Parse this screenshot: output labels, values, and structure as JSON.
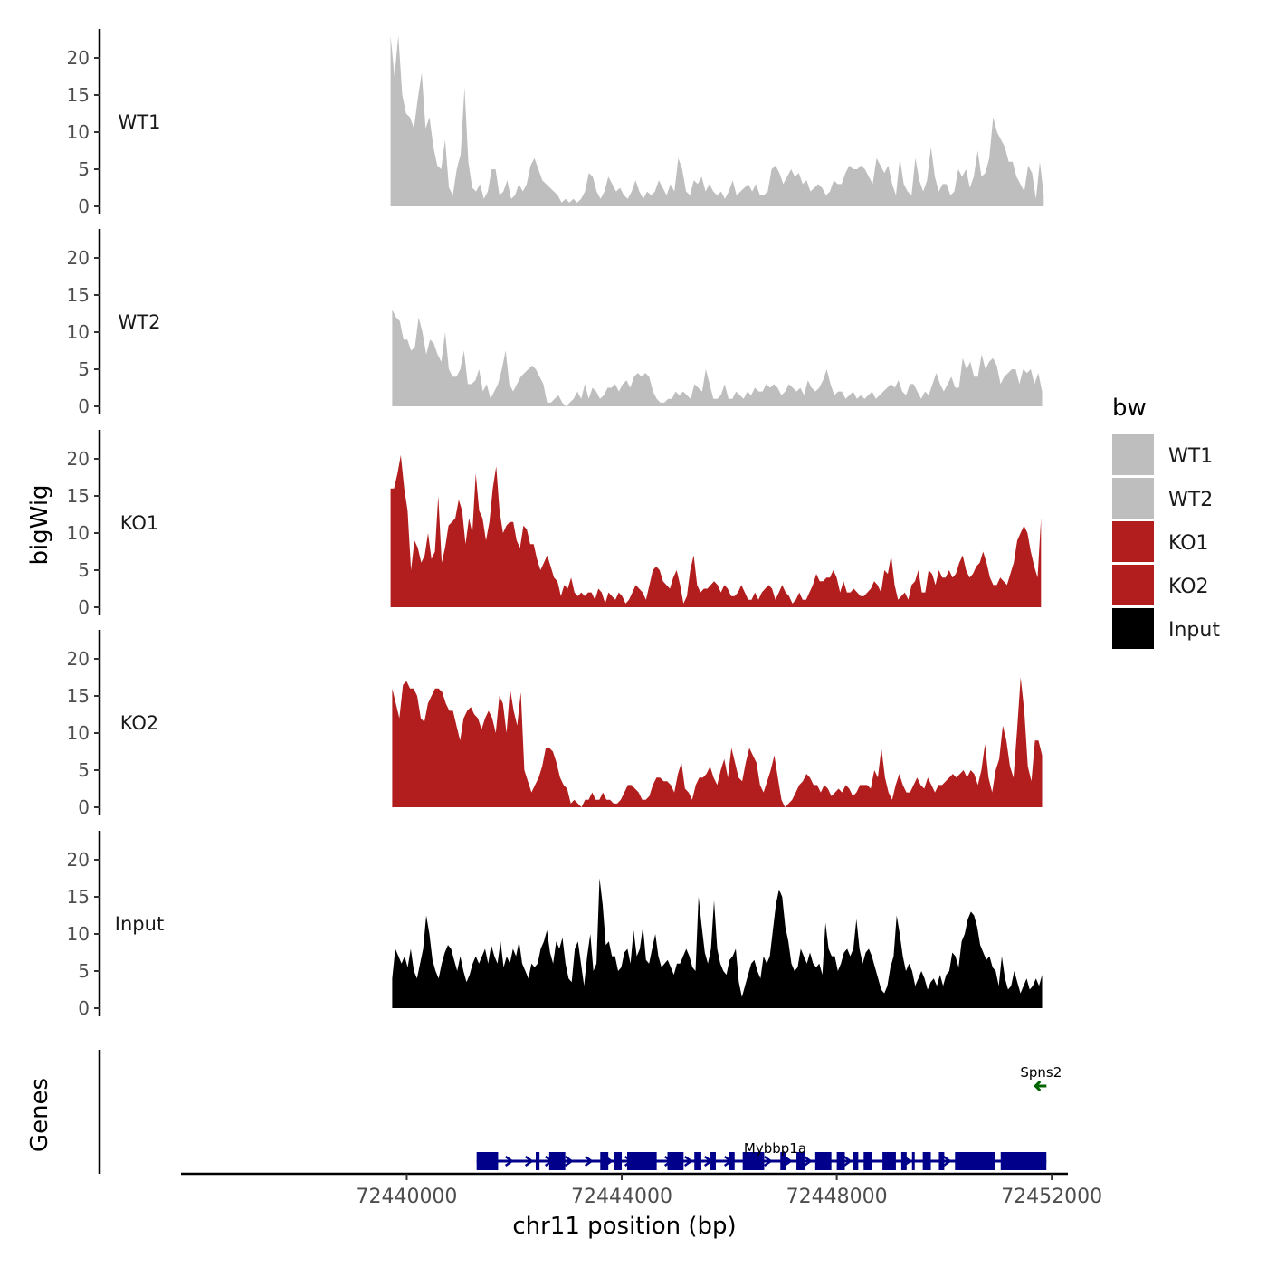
{
  "chart_data": {
    "type": "area",
    "ylabel": "bigWig",
    "xlabel": "chr11 position (bp)",
    "xlim": [
      72435800,
      72452300
    ],
    "x_ticks": [
      72440000,
      72444000,
      72448000,
      72452000
    ],
    "x_tick_labels": [
      "72440000",
      "72444000",
      "72448000",
      "72452000"
    ],
    "ylim": [
      0,
      24
    ],
    "y_ticks": [
      0,
      5,
      10,
      15,
      20
    ],
    "y_tick_labels": [
      "0",
      "5",
      "10",
      "15",
      "20"
    ],
    "grid": false,
    "legend": {
      "title": "bw",
      "position": "right",
      "entries": [
        {
          "label": "WT1",
          "color": "#bebebe"
        },
        {
          "label": "WT2",
          "color": "#bebebe"
        },
        {
          "label": "KO1",
          "color": "#b21e1e"
        },
        {
          "label": "KO2",
          "color": "#b21e1e"
        },
        {
          "label": "Input",
          "color": "#000000"
        }
      ]
    },
    "series": [
      {
        "name": "WT1",
        "color": "#bebebe",
        "x_start": 72439700,
        "x_end": 72451850,
        "values": [
          23,
          17.5,
          23,
          15,
          12.5,
          12,
          10.5,
          14.5,
          18,
          10.5,
          12,
          8,
          5.5,
          5,
          9,
          2.5,
          1.5,
          5,
          7,
          16,
          6,
          2.5,
          2,
          3,
          1,
          2,
          5,
          5,
          1.5,
          2,
          3.5,
          1,
          1.5,
          3,
          2,
          3,
          5.5,
          6.5,
          5,
          3.5,
          3,
          2.5,
          2,
          1.5,
          0.5,
          1,
          0.5,
          1,
          0.5,
          1,
          2,
          4.5,
          4,
          2,
          1,
          2,
          4,
          3,
          2,
          2.5,
          1.5,
          1,
          2,
          3.5,
          2,
          1,
          2,
          1.5,
          2,
          3.5,
          2.5,
          1.5,
          3,
          2,
          6.5,
          5,
          2,
          1.5,
          3.5,
          3,
          4,
          2,
          3,
          2,
          1.5,
          2,
          1,
          2,
          3.5,
          1.5,
          2,
          2.5,
          3,
          2,
          3,
          1.5,
          1.5,
          2,
          5,
          5.5,
          4.5,
          3,
          4,
          5,
          4,
          4.5,
          3,
          3.5,
          2,
          2.5,
          3,
          2.5,
          1.5,
          2,
          3.5,
          3,
          3,
          4.5,
          5.5,
          5,
          5,
          5.5,
          5,
          4,
          3,
          6.5,
          5.5,
          4.5,
          5.5,
          3,
          1.5,
          6.5,
          3,
          2,
          1.5,
          6.5,
          3.5,
          2,
          3.5,
          8,
          4,
          2,
          3,
          3,
          1.5,
          2,
          5,
          4,
          5,
          2.5,
          4,
          7.5,
          4,
          4.5,
          6.5,
          12,
          10,
          9,
          8,
          6,
          6,
          4,
          3,
          2,
          5.5,
          4.5,
          1,
          6,
          1.5
        ]
      },
      {
        "name": "WT2",
        "color": "#bebebe",
        "x_start": 72439730,
        "x_end": 72451820,
        "values": [
          13,
          12,
          11.5,
          9,
          9,
          7.5,
          8,
          12,
          10,
          7,
          9,
          8.5,
          7,
          6,
          10,
          5,
          4,
          4,
          5,
          7.5,
          3,
          3,
          3.5,
          5,
          2,
          3,
          1,
          2,
          3,
          5,
          7.5,
          3,
          2,
          3,
          4,
          4.5,
          5,
          5.5,
          5,
          4,
          3,
          0.5,
          0.5,
          1,
          1.5,
          0.5,
          0,
          0.5,
          1,
          2,
          1,
          3,
          1,
          2.5,
          2,
          1,
          1.5,
          2.5,
          2.5,
          3,
          2,
          3,
          3.5,
          2.5,
          4,
          4.5,
          4,
          4.5,
          4,
          2,
          1,
          0.5,
          0.5,
          1,
          1,
          2,
          1.5,
          2,
          1.5,
          1,
          3,
          2.5,
          2,
          5,
          3,
          1,
          1,
          1.5,
          3,
          1,
          1,
          2,
          1.5,
          1,
          2,
          1.5,
          2.5,
          2,
          2,
          3,
          2.5,
          3,
          2.5,
          1.5,
          2,
          3,
          2.5,
          2,
          2.5,
          1.5,
          3.5,
          2.5,
          2,
          2.5,
          3.5,
          5,
          3,
          1.5,
          2,
          2,
          1,
          1.5,
          2,
          1,
          1.5,
          1,
          1.5,
          2,
          1,
          1.5,
          2,
          2.5,
          3,
          2.5,
          3.5,
          2,
          1.5,
          3,
          3,
          2,
          1,
          2,
          1.5,
          3,
          4.5,
          3,
          2,
          3,
          4,
          2.5,
          2.5,
          6.5,
          5,
          6,
          4,
          4,
          7,
          5,
          6,
          6.5,
          5.5,
          3,
          4,
          4.5,
          5,
          5,
          3,
          5,
          4.5,
          5,
          3,
          4.5,
          2
        ]
      },
      {
        "name": "KO1",
        "color": "#b21e1e",
        "x_start": 72439700,
        "x_end": 72451800,
        "values": [
          16,
          16,
          18,
          20.5,
          16,
          13,
          5,
          9,
          8,
          6,
          7,
          10,
          6.5,
          7.5,
          15,
          6,
          8,
          11,
          11.5,
          12,
          14.5,
          13,
          8.5,
          12,
          10,
          18,
          13,
          12,
          9,
          11.5,
          16,
          19,
          13,
          10,
          11,
          11.5,
          11.5,
          9,
          8,
          11,
          10.5,
          8.5,
          8.5,
          6.5,
          5,
          6,
          7,
          5.5,
          4,
          3.5,
          1.5,
          3,
          2.5,
          4,
          2,
          1.5,
          2,
          1.5,
          2,
          2,
          1,
          2.5,
          2,
          0.5,
          2,
          1.5,
          1,
          2,
          1.5,
          0.5,
          1,
          2,
          3,
          2.5,
          2,
          1,
          3,
          5,
          5.5,
          5,
          3.5,
          3,
          2.5,
          4,
          5,
          3,
          0.5,
          1.5,
          5,
          7,
          3,
          2,
          2.5,
          2.5,
          3,
          3.5,
          3,
          2,
          3,
          2.5,
          1.5,
          1.5,
          2,
          3,
          2,
          1,
          1,
          2,
          1,
          2,
          2.5,
          3,
          2.5,
          1,
          2,
          3,
          2,
          1.5,
          0.5,
          1,
          2,
          1,
          1,
          2,
          3,
          4.5,
          3.5,
          3.5,
          4,
          4,
          5,
          4,
          2,
          3.5,
          2,
          2,
          2.5,
          2,
          1.5,
          1.5,
          2,
          2.5,
          3.5,
          3,
          2,
          5,
          4.5,
          7,
          3,
          1,
          1.5,
          2,
          1,
          3,
          3.5,
          5,
          2,
          2,
          5,
          4.5,
          3,
          5,
          4,
          4,
          5,
          4,
          4.5,
          6,
          7,
          5,
          4,
          4.5,
          5.5,
          6,
          7.5,
          6,
          4,
          3,
          3,
          4,
          3.5,
          3,
          4.5,
          6,
          9,
          10,
          11,
          10,
          7.5,
          5.5,
          4,
          12
        ]
      },
      {
        "name": "KO2",
        "color": "#b21e1e",
        "x_start": 72439730,
        "x_end": 72451820,
        "values": [
          16,
          14,
          12,
          16.5,
          17,
          16,
          16,
          15,
          12,
          11.5,
          14,
          15,
          16,
          16,
          15.5,
          14,
          13,
          13,
          11,
          9,
          12,
          13,
          13.5,
          12.5,
          12,
          10.5,
          12,
          13,
          12,
          10,
          15,
          14,
          10,
          16,
          13,
          11,
          15.5,
          5,
          3.5,
          2,
          3,
          4,
          5.5,
          8,
          8,
          7.5,
          6,
          4,
          3,
          2.5,
          0.5,
          1,
          0.5,
          0,
          1,
          1,
          2,
          1,
          1,
          2,
          1,
          1,
          0.5,
          0.5,
          1,
          2,
          3,
          3,
          2.5,
          2,
          1,
          1,
          1.5,
          3,
          4,
          4,
          3.5,
          3.5,
          3,
          2,
          4.5,
          6,
          2.5,
          2,
          1,
          3,
          4,
          4,
          4.5,
          5.5,
          4,
          3,
          5,
          6.5,
          4,
          8,
          6,
          4,
          3.5,
          6,
          8,
          7,
          6,
          3,
          2,
          3.5,
          5,
          7,
          4,
          1,
          0,
          0.5,
          1,
          2,
          3,
          3.5,
          4.5,
          4,
          3,
          3,
          2,
          3,
          2.5,
          1.5,
          2,
          2.5,
          2,
          3,
          2.5,
          1.5,
          2,
          3,
          3,
          3,
          2.5,
          5,
          4,
          8,
          4,
          2,
          1,
          3,
          4.5,
          3,
          2,
          2,
          3,
          4,
          3,
          2.5,
          4,
          3,
          2,
          3,
          3,
          3.5,
          4,
          4.5,
          4,
          4.5,
          5,
          4,
          5,
          4.5,
          3,
          5,
          8.5,
          4,
          2,
          5,
          6.5,
          11,
          9,
          5.5,
          4,
          10.5,
          17.5,
          13,
          5.5,
          3.5,
          9,
          9,
          7
        ]
      },
      {
        "name": "Input",
        "color": "#000000",
        "x_start": 72439730,
        "x_end": 72451820,
        "values": [
          4,
          8,
          7,
          6,
          7,
          5.5,
          8,
          5,
          4,
          6,
          8,
          12.5,
          10,
          6.5,
          5,
          4,
          6,
          7.5,
          8.5,
          8,
          6.5,
          5,
          7,
          5,
          3.5,
          4.5,
          6,
          7,
          6,
          7,
          8,
          6,
          8.5,
          7,
          6,
          9,
          5.5,
          7,
          6,
          8,
          7,
          9,
          6,
          5,
          4,
          6,
          5.5,
          6,
          8,
          9,
          10.5,
          7.5,
          6,
          9,
          8,
          9.5,
          6,
          4,
          3.5,
          8,
          9,
          6,
          3,
          7,
          10,
          5,
          6,
          17.5,
          14,
          8.5,
          9,
          7,
          7,
          5,
          5.5,
          7.5,
          8,
          6,
          10.5,
          7,
          8,
          11,
          6.5,
          6,
          8,
          10,
          7,
          5.5,
          6,
          6.5,
          5.5,
          4.5,
          6,
          6,
          7,
          8,
          7,
          5.5,
          5,
          15,
          11,
          7.5,
          6,
          8,
          14.5,
          8,
          6,
          5,
          4.5,
          6.5,
          7,
          8,
          3.5,
          1.5,
          3,
          4.5,
          6,
          6.5,
          5,
          4,
          7,
          6,
          7,
          10.5,
          14,
          16,
          15,
          11,
          9,
          6,
          5,
          5.5,
          8,
          7,
          6,
          7.5,
          6,
          5.5,
          6,
          4.5,
          11.5,
          8,
          7,
          7,
          5,
          6,
          7.5,
          8,
          7,
          8,
          12,
          8,
          6,
          7.5,
          8,
          7,
          5.5,
          4,
          2.5,
          2,
          3,
          5.5,
          7,
          12.5,
          10,
          7,
          5,
          6,
          5,
          3,
          4,
          5,
          4,
          2.5,
          3.5,
          4,
          3,
          4.5,
          3,
          4.5,
          5,
          7.5,
          7,
          5.5,
          9,
          10,
          12,
          13,
          12.5,
          11,
          8.5,
          7.5,
          6.5,
          7,
          5.5,
          5,
          3,
          7,
          4,
          2.5,
          3,
          5,
          3.5,
          2,
          3,
          4,
          2.5,
          3,
          4,
          3,
          4.5
        ]
      }
    ],
    "genes": [
      {
        "name": "Mybbp1a",
        "strand": "+",
        "start": 72441300,
        "end": 72451900,
        "color": "#00008b",
        "exons": [
          [
            72441300,
            72441700
          ],
          [
            72442400,
            72442470
          ],
          [
            72442650,
            72442950
          ],
          [
            72443600,
            72443750
          ],
          [
            72443850,
            72444000
          ],
          [
            72444100,
            72444650
          ],
          [
            72444850,
            72445150
          ],
          [
            72445350,
            72445480
          ],
          [
            72445650,
            72445750
          ],
          [
            72446000,
            72446100
          ],
          [
            72446250,
            72446650
          ],
          [
            72446950,
            72447050
          ],
          [
            72447250,
            72447400
          ],
          [
            72447600,
            72447900
          ],
          [
            72448000,
            72448150
          ],
          [
            72448300,
            72448400
          ],
          [
            72448500,
            72448650
          ],
          [
            72448850,
            72449100
          ],
          [
            72449200,
            72449300
          ],
          [
            72449400,
            72449450
          ],
          [
            72449600,
            72449750
          ],
          [
            72449900,
            72450000
          ],
          [
            72450200,
            72450950
          ],
          [
            72451050,
            72451900
          ]
        ]
      },
      {
        "name": "Spns2",
        "strand": "-",
        "start": 72451750,
        "end": 72451850,
        "color": "#006400",
        "exons": []
      }
    ],
    "gene_track_label": "Genes"
  }
}
